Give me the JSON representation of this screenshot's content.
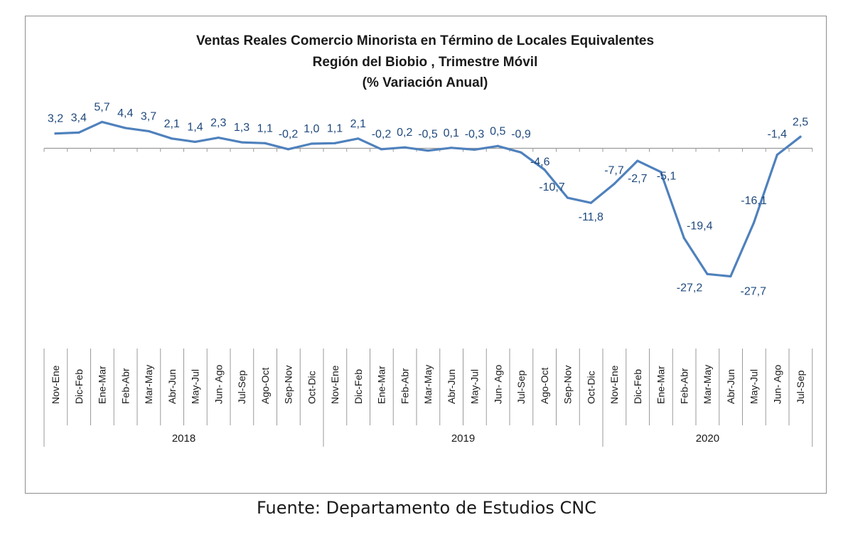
{
  "chart_data": {
    "type": "line",
    "title": [
      "Ventas Reales Comercio Minorista  en Término de Locales Equivalentes",
      "Región del Biobio , Trimestre Móvil",
      "(% Variación Anual)"
    ],
    "categories": [
      "Nov-Ene",
      "Dic-Feb",
      "Ene-Mar",
      "Feb-Abr",
      "Mar-May",
      "Abr-Jun",
      "May-Jul",
      "Jun- Ago",
      "Jul-Sep",
      "Ago-Oct",
      "Sep-Nov",
      "Oct-Dic",
      "Nov-Ene",
      "Dic-Feb",
      "Ene-Mar",
      "Feb-Abr",
      "Mar-May",
      "Abr-Jun",
      "May-Jul",
      "Jun- Ago",
      "Jul-Sep",
      "Ago-Oct",
      "Sep-Nov",
      "Oct-Dic",
      "Nov-Ene",
      "Dic-Feb",
      "Ene-Mar",
      "Feb-Abr",
      "Mar-May",
      "Abr-Jun",
      "May-Jul",
      "Jun- Ago",
      "Jul-Sep"
    ],
    "groups": [
      {
        "label": "2018",
        "count": 12
      },
      {
        "label": "2019",
        "count": 12
      },
      {
        "label": "2020",
        "count": 9
      }
    ],
    "values": [
      3.2,
      3.4,
      5.7,
      4.4,
      3.7,
      2.1,
      1.4,
      2.3,
      1.3,
      1.1,
      -0.2,
      1.0,
      1.1,
      2.1,
      -0.2,
      0.2,
      -0.5,
      0.1,
      -0.3,
      0.5,
      -0.9,
      -4.6,
      -10.7,
      -11.8,
      -7.7,
      -2.7,
      -5.1,
      -19.4,
      -27.2,
      -27.7,
      -16.1,
      -1.4,
      2.5
    ],
    "data_labels": [
      "3,2",
      "3,4",
      "5,7",
      "4,4",
      "3,7",
      "2,1",
      "1,4",
      "2,3",
      "1,3",
      "1,1",
      "-0,2",
      "1,0",
      "1,1",
      "2,1",
      "-0,2",
      "0,2",
      "-0,5",
      "0,1",
      "-0,3",
      "0,5",
      "-0,9",
      "-4,6",
      "-10,7",
      "-11,8",
      "-7,7",
      "-2,7",
      "-5,1",
      "-19,4",
      "-27,2",
      "-27,7",
      "-16,1",
      "-1,4",
      "2,5"
    ],
    "line_color": "#4f81bd",
    "label_color": "#1f497d",
    "grid": false,
    "legend": "none"
  },
  "source_note": "Fuente: Departamento de Estudios CNC"
}
